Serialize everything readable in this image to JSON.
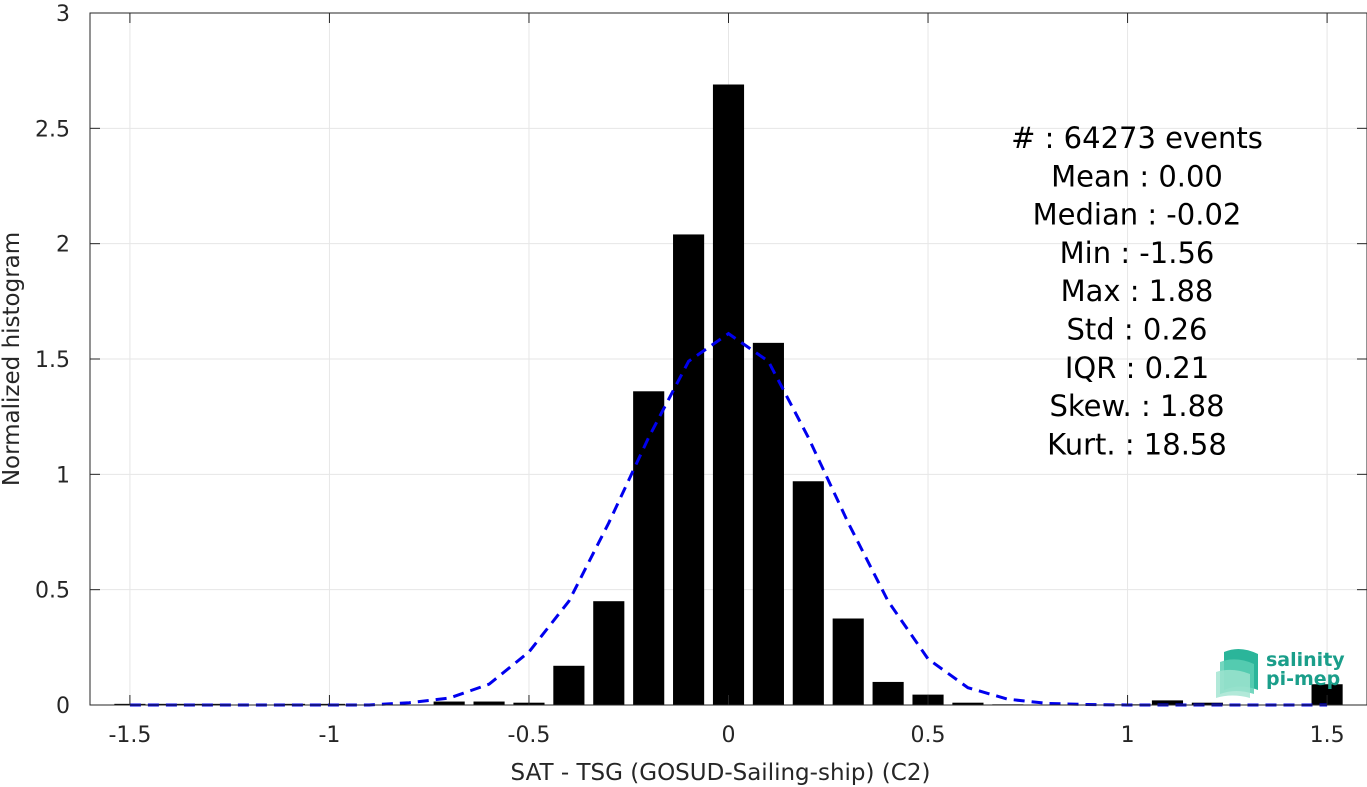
{
  "chart_data": {
    "type": "bar",
    "xlabel": "SAT - TSG (GOSUD-Sailing-ship) (C2)",
    "ylabel": "Normalized histogram",
    "xlim": [
      -1.6,
      1.6
    ],
    "ylim": [
      0,
      3
    ],
    "xticks": [
      -1.5,
      -1,
      -0.5,
      0,
      0.5,
      1,
      1.5
    ],
    "xtick_labels": [
      "-1.5",
      "-1",
      "-0.5",
      "0",
      "0.5",
      "1",
      "1.5"
    ],
    "yticks": [
      0,
      0.5,
      1,
      1.5,
      2,
      2.5,
      3
    ],
    "ytick_labels": [
      "0",
      "0.5",
      "1",
      "1.5",
      "2",
      "2.5",
      "3"
    ],
    "grid": true,
    "bin_width": 0.1,
    "bins": [
      {
        "x": -1.5,
        "y": 0.005
      },
      {
        "x": -1.4,
        "y": 0.005
      },
      {
        "x": -1.3,
        "y": 0.005
      },
      {
        "x": -1.2,
        "y": 0.0
      },
      {
        "x": -1.1,
        "y": 0.005
      },
      {
        "x": -1.0,
        "y": 0.005
      },
      {
        "x": -0.9,
        "y": 0.0
      },
      {
        "x": -0.8,
        "y": 0.0
      },
      {
        "x": -0.7,
        "y": 0.015
      },
      {
        "x": -0.6,
        "y": 0.015
      },
      {
        "x": -0.5,
        "y": 0.01
      },
      {
        "x": -0.4,
        "y": 0.17
      },
      {
        "x": -0.3,
        "y": 0.45
      },
      {
        "x": -0.2,
        "y": 1.36
      },
      {
        "x": -0.1,
        "y": 2.04
      },
      {
        "x": 0.0,
        "y": 2.69
      },
      {
        "x": 0.1,
        "y": 1.57
      },
      {
        "x": 0.2,
        "y": 0.97
      },
      {
        "x": 0.3,
        "y": 0.375
      },
      {
        "x": 0.4,
        "y": 0.1
      },
      {
        "x": 0.5,
        "y": 0.045
      },
      {
        "x": 0.6,
        "y": 0.01
      },
      {
        "x": 0.7,
        "y": 0.003
      },
      {
        "x": 0.8,
        "y": 0.0
      },
      {
        "x": 0.9,
        "y": 0.0
      },
      {
        "x": 1.0,
        "y": 0.003
      },
      {
        "x": 1.1,
        "y": 0.02
      },
      {
        "x": 1.2,
        "y": 0.01
      },
      {
        "x": 1.3,
        "y": 0.0
      },
      {
        "x": 1.4,
        "y": 0.0
      },
      {
        "x": 1.5,
        "y": 0.09
      }
    ],
    "fit_curve": {
      "style": "dashed",
      "color": "#0000ee",
      "points": [
        [
          -1.5,
          0.0
        ],
        [
          -1.4,
          0.0
        ],
        [
          -1.3,
          0.0
        ],
        [
          -1.2,
          0.0
        ],
        [
          -1.1,
          0.0
        ],
        [
          -1.0,
          0.0
        ],
        [
          -0.9,
          0.0
        ],
        [
          -0.8,
          0.01
        ],
        [
          -0.7,
          0.03
        ],
        [
          -0.6,
          0.09
        ],
        [
          -0.5,
          0.23
        ],
        [
          -0.4,
          0.45
        ],
        [
          -0.3,
          0.79
        ],
        [
          -0.2,
          1.16
        ],
        [
          -0.1,
          1.49
        ],
        [
          0.0,
          1.61
        ],
        [
          0.1,
          1.49
        ],
        [
          0.2,
          1.16
        ],
        [
          0.3,
          0.79
        ],
        [
          0.4,
          0.45
        ],
        [
          0.5,
          0.2
        ],
        [
          0.6,
          0.075
        ],
        [
          0.7,
          0.025
        ],
        [
          0.8,
          0.007
        ],
        [
          0.9,
          0.002
        ],
        [
          1.0,
          0.0
        ],
        [
          1.1,
          0.0
        ],
        [
          1.2,
          0.0
        ],
        [
          1.3,
          0.0
        ],
        [
          1.4,
          0.0
        ],
        [
          1.5,
          0.0
        ]
      ]
    },
    "bar_color": "#000000",
    "stats": [
      "#  : 64273 events",
      "Mean : 0.00",
      "Median : -0.02",
      "Min : -1.56",
      "Max : 1.88",
      "Std : 0.26",
      "IQR : 0.21",
      "Skew. : 1.88",
      "Kurt. : 18.58"
    ]
  },
  "logo": {
    "line1": "salinity",
    "line2": "pi-mep",
    "color": "#1a9e8a"
  }
}
